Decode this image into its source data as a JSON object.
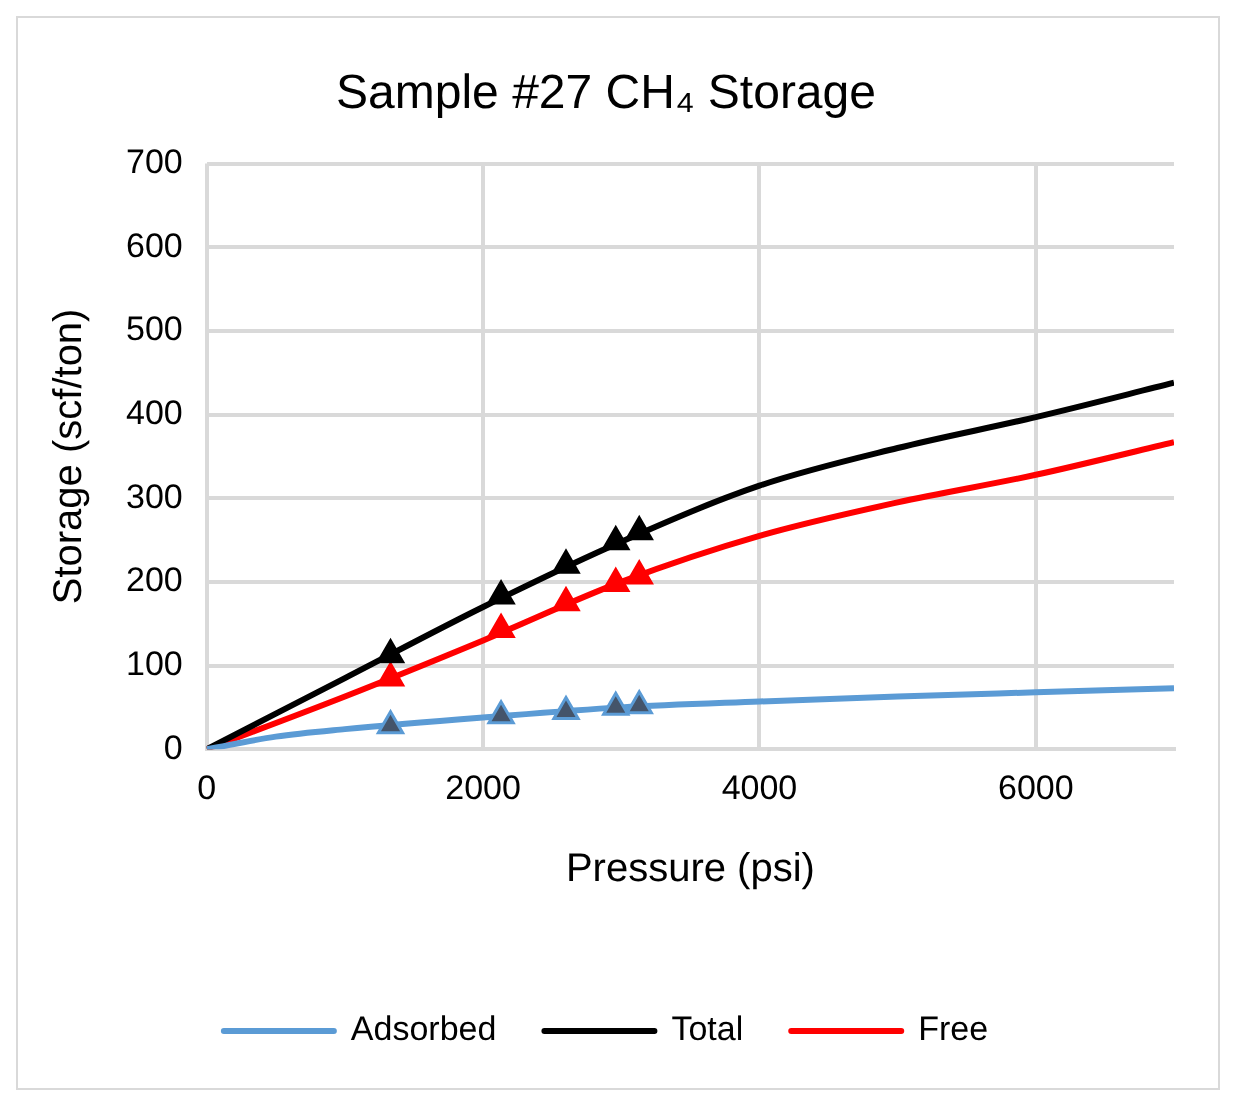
{
  "chart_data": {
    "type": "line",
    "title": "Sample #27 CH₄ Storage",
    "xlabel": "Pressure (psi)",
    "ylabel": "Storage (scf/ton)",
    "xlim": [
      0,
      7000
    ],
    "xticks": [
      0,
      2000,
      4000,
      6000
    ],
    "ylim": [
      0,
      700
    ],
    "yticks": [
      0,
      100,
      200,
      300,
      400,
      500,
      600,
      700
    ],
    "grid": true,
    "legend": "bottom",
    "line_style": "solid",
    "series": [
      {
        "name": "Adsorbed",
        "color": "#5b9bd5",
        "x": [
          0,
          500,
          1000,
          2000,
          3000,
          4000,
          5000,
          6000,
          7000
        ],
        "values": [
          0,
          15,
          24,
          38,
          50,
          57,
          63,
          68,
          73
        ]
      },
      {
        "name": "Total",
        "color": "#000000",
        "x": [
          0,
          1000,
          2000,
          3000,
          4000,
          5000,
          6000,
          7000
        ],
        "values": [
          0,
          85,
          170,
          248,
          315,
          360,
          397,
          438
        ]
      },
      {
        "name": "Free",
        "color": "#ff0000",
        "x": [
          0,
          1000,
          2000,
          3000,
          4000,
          5000,
          6000,
          7000
        ],
        "values": [
          0,
          63,
          130,
          200,
          255,
          295,
          328,
          367
        ]
      },
      {
        "type": "scatter",
        "marker": "triangle",
        "color": "#44546a",
        "x": [
          1330,
          2130,
          2600,
          2960,
          3130
        ],
        "values": [
          28,
          40,
          45,
          50,
          52
        ]
      },
      {
        "type": "scatter",
        "marker": "triangle",
        "color": "#000000",
        "x": [
          1330,
          2130,
          2600,
          2960,
          3130
        ],
        "values": [
          113,
          183,
          220,
          248,
          260
        ]
      },
      {
        "type": "scatter",
        "marker": "triangle",
        "color": "#ff0000",
        "x": [
          1330,
          2130,
          2600,
          2960,
          3130
        ],
        "values": [
          85,
          143,
          175,
          198,
          207
        ]
      }
    ]
  }
}
